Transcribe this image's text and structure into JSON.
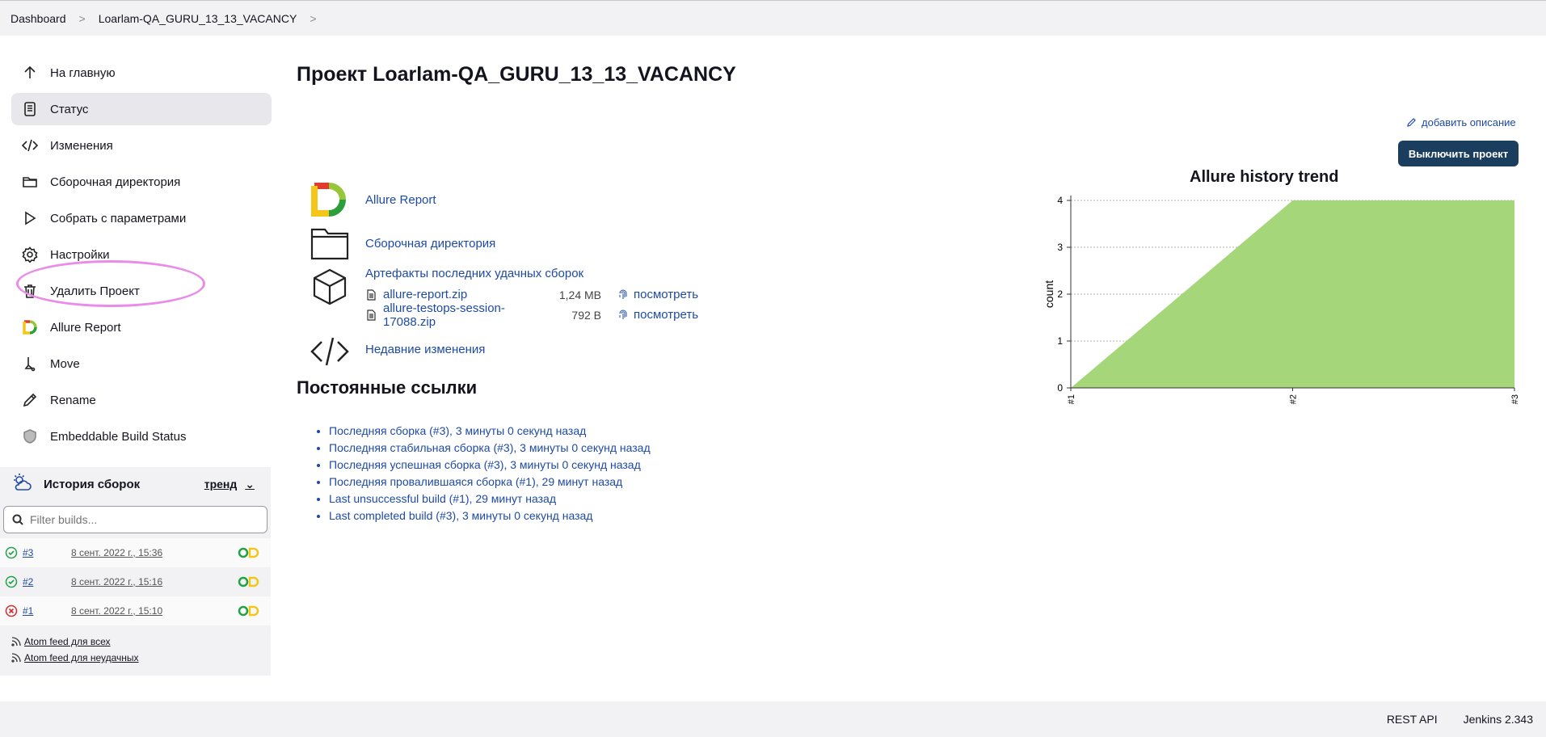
{
  "breadcrumb": {
    "items": [
      "Dashboard",
      "Loarlam-QA_GURU_13_13_VACANCY"
    ]
  },
  "sidebar": {
    "items": [
      {
        "label": "На главную",
        "icon": "arrow-up-icon"
      },
      {
        "label": "Статус",
        "icon": "document-icon",
        "active": true
      },
      {
        "label": "Изменения",
        "icon": "code-icon"
      },
      {
        "label": "Сборочная директория",
        "icon": "folder-icon"
      },
      {
        "label": "Собрать с параметрами",
        "icon": "play-icon"
      },
      {
        "label": "Настройки",
        "icon": "gear-icon"
      },
      {
        "label": "Удалить Проект",
        "icon": "trash-icon"
      },
      {
        "label": "Allure Report",
        "icon": "allure-icon"
      },
      {
        "label": "Move",
        "icon": "move-icon"
      },
      {
        "label": "Rename",
        "icon": "pencil-icon"
      },
      {
        "label": "Embeddable Build Status",
        "icon": "shield-icon"
      }
    ]
  },
  "history": {
    "title": "История сборок",
    "trend_label": "тренд",
    "filter_placeholder": "Filter builds...",
    "builds": [
      {
        "number": "#3",
        "date": "8 сент. 2022 г., 15:36",
        "status": "success"
      },
      {
        "number": "#2",
        "date": "8 сент. 2022 г., 15:16",
        "status": "success"
      },
      {
        "number": "#1",
        "date": "8 сент. 2022 г., 15:10",
        "status": "failed"
      }
    ],
    "feeds": [
      "Atom feed для всех",
      "Atom feed для неудачных"
    ]
  },
  "main": {
    "title": "Проект Loarlam-QA_GURU_13_13_VACANCY",
    "add_description": "добавить описание",
    "disable_button": "Выключить проект",
    "links": {
      "allure": "Allure Report",
      "workspace": "Сборочная директория",
      "artifacts_title": "Артефакты последних удачных сборок",
      "artifacts": [
        {
          "name": "allure-report.zip",
          "size": "1,24 MB",
          "view": "посмотреть"
        },
        {
          "name": "allure-testops-session-17088.zip",
          "size": "792 B",
          "view": "посмотреть"
        }
      ],
      "changes": "Недавние изменения"
    },
    "permalinks_title": "Постоянные ссылки",
    "permalinks": [
      "Последняя сборка (#3), 3 минуты 0 секунд назад",
      "Последняя стабильная сборка (#3), 3 минуты 0 секунд назад",
      "Последняя успешная сборка (#3), 3 минуты 0 секунд назад",
      "Последняя провалившаяся сборка (#1), 29 минут назад",
      "Last unsuccessful build (#1), 29 минут назад",
      "Last completed build (#3), 3 минуты 0 секунд назад"
    ]
  },
  "chart_data": {
    "type": "area",
    "title": "Allure history trend",
    "ylabel": "count",
    "categories": [
      "#1",
      "#2",
      "#3"
    ],
    "series": [
      {
        "values": [
          0,
          4,
          4
        ],
        "color": "#a5d67a"
      }
    ],
    "ylim": [
      0,
      4
    ],
    "yticks": [
      0,
      1,
      2,
      3,
      4
    ],
    "grid": true
  },
  "footer": {
    "rest_api": "REST API",
    "version": "Jenkins 2.343"
  },
  "colors": {
    "link": "#1e4aa6",
    "primary_button": "#1b3e5f",
    "chart_fill": "#a5d67a",
    "highlight": "#e98ce8"
  }
}
